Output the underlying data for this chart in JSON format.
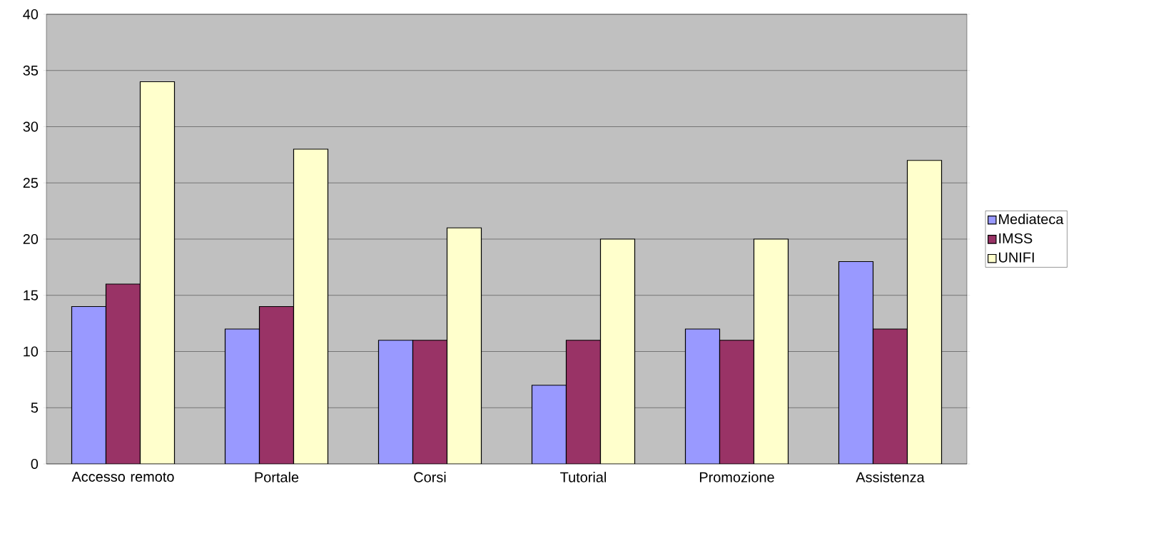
{
  "chart_data": {
    "type": "bar",
    "categories": [
      "Accesso remoto",
      "Portale",
      "Corsi",
      "Tutorial",
      "Promozione",
      "Assistenza"
    ],
    "series": [
      {
        "name": "Mediateca",
        "color": "#9999ff",
        "values": [
          14,
          12,
          11,
          7,
          12,
          18
        ]
      },
      {
        "name": "IMSS",
        "color": "#993366",
        "values": [
          16,
          14,
          11,
          11,
          11,
          12
        ]
      },
      {
        "name": "UNIFI",
        "color": "#ffffcc",
        "values": [
          34,
          28,
          21,
          20,
          20,
          27
        ]
      }
    ],
    "ylim": [
      0,
      40
    ],
    "yticks": [
      0,
      5,
      10,
      15,
      20,
      25,
      30,
      35,
      40
    ],
    "grid": "y",
    "legend": "right"
  }
}
